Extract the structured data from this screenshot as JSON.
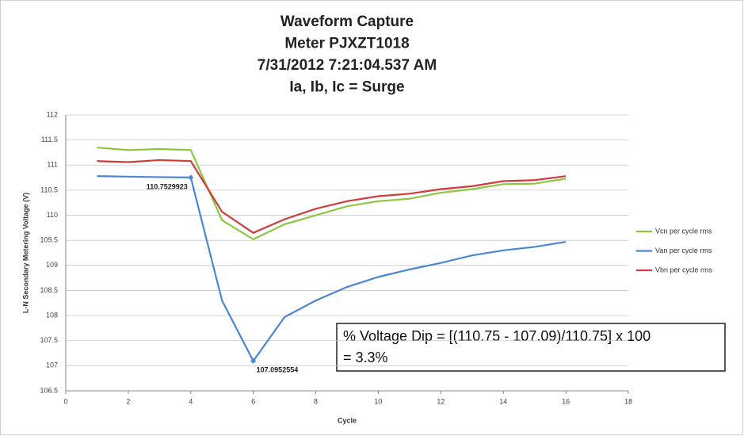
{
  "chart_data": {
    "type": "line",
    "title": [
      "Waveform Capture",
      "Meter PJXZT1018",
      "7/31/2012  7:21:04.537 AM",
      "Ia, Ib, Ic = Surge"
    ],
    "x_label": "Cycle",
    "y_label": "L-N Secondary Metering  Voltage (V)",
    "x": [
      1,
      2,
      3,
      4,
      5,
      6,
      7,
      8,
      9,
      10,
      11,
      12,
      13,
      14,
      15,
      16
    ],
    "series": [
      {
        "name": "Vcn per cycle rms",
        "color": "#8dc63f",
        "values": [
          111.35,
          111.3,
          111.32,
          111.3,
          109.9,
          109.52,
          109.82,
          110.0,
          110.18,
          110.28,
          110.33,
          110.45,
          110.52,
          110.62,
          110.63,
          110.73
        ]
      },
      {
        "name": "Van per cycle rms",
        "color": "#4a86d8",
        "values": [
          110.78,
          110.77,
          110.76,
          110.7529923,
          108.3,
          107.0952554,
          107.97,
          108.3,
          108.57,
          108.77,
          108.92,
          109.05,
          109.2,
          109.3,
          109.37,
          109.47
        ],
        "labeled": [
          3,
          5
        ]
      },
      {
        "name": "Vbn per cycle rms",
        "color": "#d03c3c",
        "values": [
          111.08,
          111.06,
          111.1,
          111.08,
          110.07,
          109.65,
          109.92,
          110.13,
          110.28,
          110.38,
          110.43,
          110.52,
          110.58,
          110.68,
          110.7,
          110.78
        ]
      }
    ],
    "xlim": [
      0,
      18
    ],
    "xticks": [
      0,
      2,
      4,
      6,
      8,
      10,
      12,
      14,
      16,
      18
    ],
    "ylim": [
      106.5,
      112
    ],
    "yticks": [
      106.5,
      107,
      107.5,
      108,
      108.5,
      109,
      109.5,
      110,
      110.5,
      111,
      111.5,
      112
    ],
    "grid": true,
    "legend": "right",
    "annotation": [
      "% Voltage Dip = [(110.75 - 107.09)/110.75] x 100",
      "= 3.3%"
    ]
  }
}
